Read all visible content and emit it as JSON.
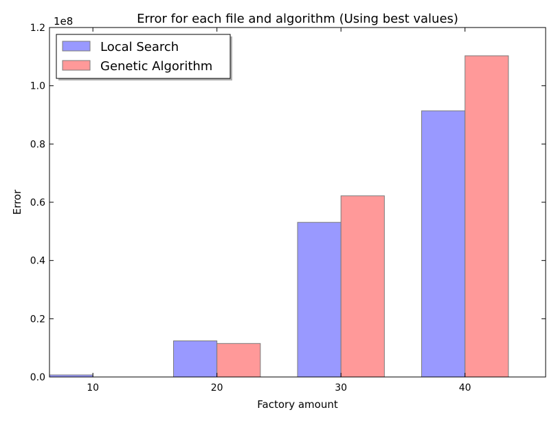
{
  "chart_data": {
    "type": "bar",
    "title": "Error for each file and algorithm (Using best values)",
    "xlabel": "Factory amount",
    "ylabel": "Error",
    "y_multiplier_label": "1e8",
    "categories": [
      "10",
      "20",
      "30",
      "40"
    ],
    "series": [
      {
        "name": "Local Search",
        "color": "#9999ff",
        "values": [
          0.007,
          0.124,
          0.531,
          0.914
        ]
      },
      {
        "name": "Genetic Algorithm",
        "color": "#ff9999",
        "values": [
          0.0,
          0.115,
          0.622,
          1.103
        ]
      }
    ],
    "ylim": [
      0.0,
      1.2
    ],
    "yticks": [
      "0.0",
      "0.2",
      "0.4",
      "0.6",
      "0.8",
      "1.0",
      "1.2"
    ],
    "y_units_note": "values in units of 1e8",
    "grid": false,
    "legend_position": "top-left"
  }
}
